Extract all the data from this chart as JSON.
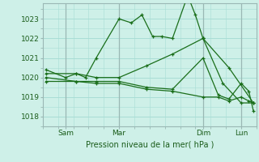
{
  "xlabel": "Pression niveau de la mer( hPa )",
  "bg_color": "#cef0e8",
  "grid_color": "#a8ddd5",
  "line_color": "#1a6e1a",
  "ylim": [
    1017.5,
    1023.8
  ],
  "xlim": [
    0,
    14
  ],
  "yticks": [
    1018,
    1019,
    1020,
    1021,
    1022,
    1023
  ],
  "xtick_positions": [
    1.5,
    5.0,
    10.5,
    13.0
  ],
  "xtick_labels": [
    "Sam",
    "Mar",
    "Dim",
    "Lun"
  ],
  "vlines": [
    1.5,
    5.0,
    10.5,
    13.0
  ],
  "series": [
    [
      0.2,
      1020.4,
      1.5,
      1020.0,
      2.2,
      1020.2,
      2.8,
      1020.0,
      3.5,
      1021.0,
      5.0,
      1023.0,
      5.8,
      1022.8,
      6.5,
      1023.2,
      7.2,
      1022.1,
      7.8,
      1022.1,
      8.5,
      1022.0,
      9.5,
      1024.2,
      10.0,
      1023.2,
      10.5,
      1022.0,
      10.5,
      1022.0,
      11.8,
      1019.7,
      13.0,
      1018.7,
      13.8,
      1018.7
    ],
    [
      0.2,
      1020.2,
      2.2,
      1020.2,
      3.5,
      1020.0,
      5.0,
      1020.0,
      6.8,
      1020.6,
      8.5,
      1021.2,
      10.5,
      1022.0,
      12.2,
      1020.5,
      13.8,
      1018.7
    ],
    [
      0.2,
      1020.0,
      2.2,
      1019.8,
      3.5,
      1019.8,
      5.0,
      1019.8,
      6.8,
      1019.5,
      8.5,
      1019.4,
      10.5,
      1021.0,
      11.5,
      1019.1,
      12.2,
      1018.9,
      13.0,
      1019.7,
      13.5,
      1019.3,
      13.8,
      1018.3
    ],
    [
      0.2,
      1019.8,
      2.2,
      1019.8,
      3.5,
      1019.7,
      5.0,
      1019.7,
      6.8,
      1019.4,
      8.5,
      1019.3,
      10.5,
      1019.0,
      11.5,
      1019.0,
      12.2,
      1018.8,
      13.0,
      1019.0,
      13.5,
      1018.8,
      13.8,
      1018.7
    ]
  ]
}
